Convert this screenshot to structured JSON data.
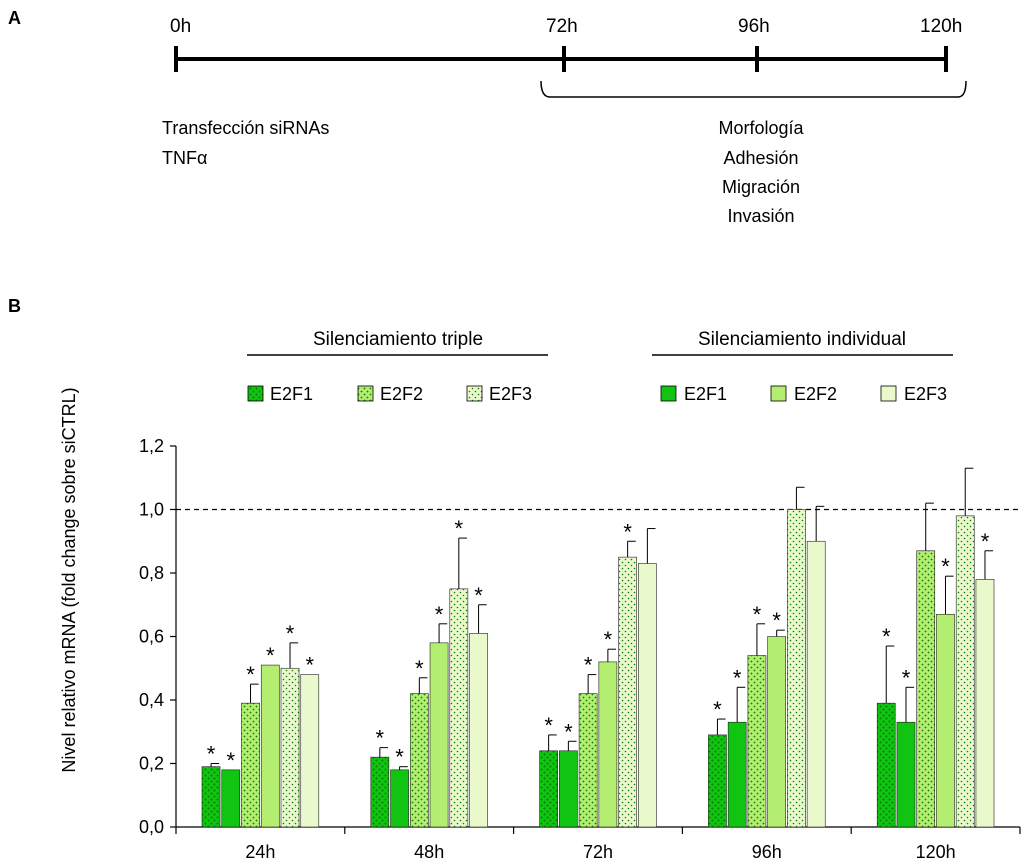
{
  "panel_a": {
    "label": "A",
    "timepoints": [
      "0h",
      "72h",
      "96h",
      "120h"
    ],
    "left_notes": [
      "Transfección siRNAs",
      "TNFα"
    ],
    "bracket_notes": [
      "Morfología",
      "Adhesión",
      "Migración",
      "Invasión"
    ]
  },
  "panel_b": {
    "label": "B"
  },
  "chart_data": {
    "type": "bar",
    "categories": [
      "24h",
      "48h",
      "72h",
      "96h",
      "120h"
    ],
    "ylabel": "Nivel relativo mRNA (fold change sobre siCTRL)",
    "ylim": [
      0,
      1.2
    ],
    "yticks": [
      "0,0",
      "0,2",
      "0,4",
      "0,6",
      "0,8",
      "1,0",
      "1,2"
    ],
    "reference_line": 1.0,
    "legend_groups": [
      {
        "title": "Silenciamiento triple",
        "entries": [
          "E2F1",
          "E2F2",
          "E2F3"
        ]
      },
      {
        "title": "Silenciamiento individual",
        "entries": [
          "E2F1",
          "E2F2",
          "E2F3"
        ]
      }
    ],
    "series_order": [
      "triple-E2F1",
      "individual-E2F1",
      "triple-E2F2",
      "individual-E2F2",
      "triple-E2F3",
      "individual-E2F3"
    ],
    "series": [
      {
        "name": "E2F1",
        "group": "Silenciamiento triple",
        "values": [
          0.19,
          0.22,
          0.24,
          0.29,
          0.39
        ],
        "errors": [
          0.01,
          0.03,
          0.05,
          0.05,
          0.18
        ],
        "significant": [
          true,
          true,
          true,
          true,
          true
        ]
      },
      {
        "name": "E2F1",
        "group": "Silenciamiento individual",
        "values": [
          0.18,
          0.18,
          0.24,
          0.33,
          0.33
        ],
        "errors": [
          0.0,
          0.01,
          0.03,
          0.11,
          0.11
        ],
        "significant": [
          true,
          true,
          true,
          true,
          true
        ]
      },
      {
        "name": "E2F2",
        "group": "Silenciamiento triple",
        "values": [
          0.39,
          0.42,
          0.42,
          0.54,
          0.87
        ],
        "errors": [
          0.06,
          0.05,
          0.06,
          0.1,
          0.15
        ],
        "significant": [
          true,
          true,
          true,
          true,
          false
        ]
      },
      {
        "name": "E2F2",
        "group": "Silenciamiento individual",
        "values": [
          0.51,
          0.58,
          0.52,
          0.6,
          0.67
        ],
        "errors": [
          0.0,
          0.06,
          0.04,
          0.02,
          0.12
        ],
        "significant": [
          true,
          true,
          true,
          true,
          true
        ]
      },
      {
        "name": "E2F3",
        "group": "Silenciamiento triple",
        "values": [
          0.5,
          0.75,
          0.85,
          1.0,
          0.98
        ],
        "errors": [
          0.08,
          0.16,
          0.05,
          0.07,
          0.15
        ],
        "significant": [
          true,
          true,
          true,
          false,
          false
        ]
      },
      {
        "name": "E2F3",
        "group": "Silenciamiento individual",
        "values": [
          0.48,
          0.61,
          0.83,
          0.9,
          0.78
        ],
        "errors": [
          0.0,
          0.09,
          0.11,
          0.11,
          0.09
        ],
        "significant": [
          true,
          true,
          false,
          false,
          true
        ]
      }
    ],
    "significance_mark": "*",
    "colors": {
      "E2F1": "#11c411",
      "E2F2": "#b3ee70",
      "E2F3": "#eaf9cc",
      "dots": "#0a7a0a",
      "error": "#000000"
    }
  }
}
